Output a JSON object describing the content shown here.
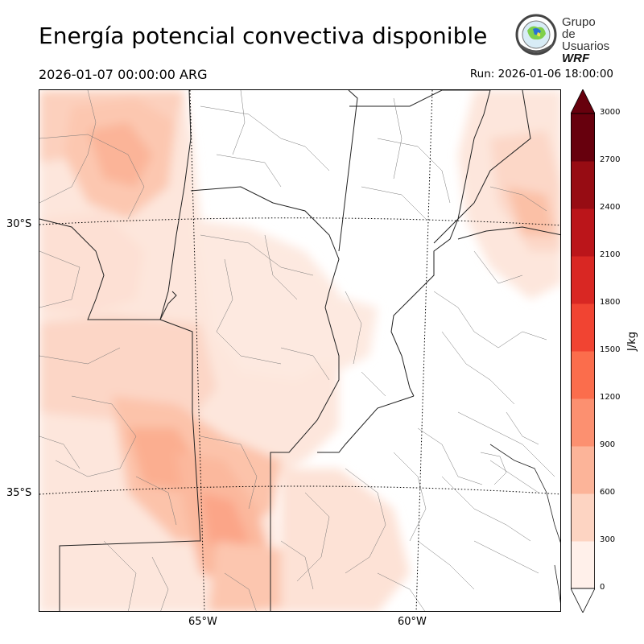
{
  "header": {
    "title": "Energía potencial convectiva disponible",
    "valid_time": "2026-01-07 00:00:00 ARG",
    "run_time": "Run: 2026-01-06 18:00:00"
  },
  "logo": {
    "line1": "Grupo de",
    "line2": "Usuarios",
    "line3": "WRF"
  },
  "map": {
    "lat_labels": [
      "30°S",
      "35°S"
    ],
    "lon_labels": [
      "65°W",
      "60°W"
    ]
  },
  "colorbar": {
    "label": "J/kg",
    "ticks": [
      "0",
      "300",
      "600",
      "900",
      "1200",
      "1500",
      "1800",
      "2100",
      "2400",
      "2700",
      "3000"
    ],
    "colors": [
      "#fff0ea",
      "#fdd4c2",
      "#fcb499",
      "#fc9070",
      "#fb6d4c",
      "#f14432",
      "#d92723",
      "#bb151a",
      "#970c13",
      "#67000d"
    ],
    "extend": "max"
  }
}
